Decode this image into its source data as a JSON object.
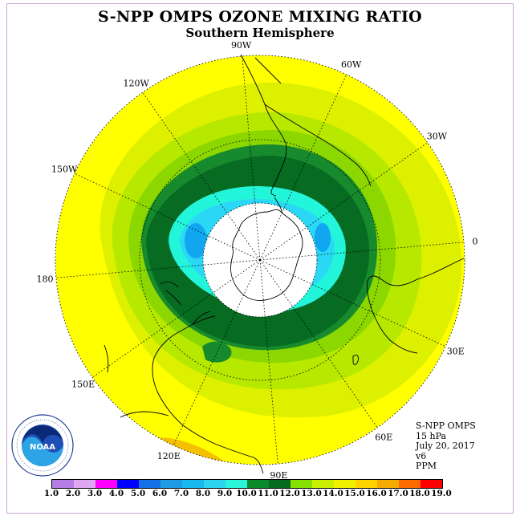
{
  "header": {
    "title": "S-NPP OMPS OZONE MIXING RATIO",
    "subtitle": "Southern Hemisphere"
  },
  "longitude_labels": [
    "90W",
    "60W",
    "30W",
    "0",
    "30E",
    "60E",
    "90E",
    "120E",
    "150E",
    "180",
    "150W",
    "120W"
  ],
  "info": {
    "line1": "S-NPP OMPS",
    "line2": "15 hPa",
    "line3": "July 20, 2017",
    "line4": "v6",
    "line5": "PPM"
  },
  "legend": {
    "labels": [
      "1.0",
      "2.0",
      "3.0",
      "4.0",
      "5.0",
      "6.0",
      "7.0",
      "8.0",
      "9.0",
      "10.0",
      "11.0",
      "12.0",
      "13.0",
      "14.0",
      "15.0",
      "16.0",
      "17.0",
      "18.0",
      "19.0"
    ],
    "colors": [
      "#b57ee6",
      "#dfa6f2",
      "#ff00ff",
      "#0000ff",
      "#1470e6",
      "#1f9be6",
      "#19b9f0",
      "#2ed3f0",
      "#2af5d8",
      "#0a8a2a",
      "#066b1e",
      "#86e000",
      "#c9f000",
      "#f0f000",
      "#ffd200",
      "#f5aa00",
      "#ff6a00",
      "#ff0000",
      "#7a4a2a"
    ]
  },
  "map_colors": {
    "band_14_15": "#ffff00",
    "band_13_14": "#ddf000",
    "band_12_13": "#b6e800",
    "band_11_12": "#8cd700",
    "band_10_11": "#168a2c",
    "band_9_10": "#076b22",
    "band_8_9": "#22f5da",
    "band_7_8": "#2ad8f5",
    "band_6_7": "#11a6f0",
    "band_15_16": "#f5c000",
    "polar_night": "#ffffff"
  },
  "logo_text": "NOAA"
}
